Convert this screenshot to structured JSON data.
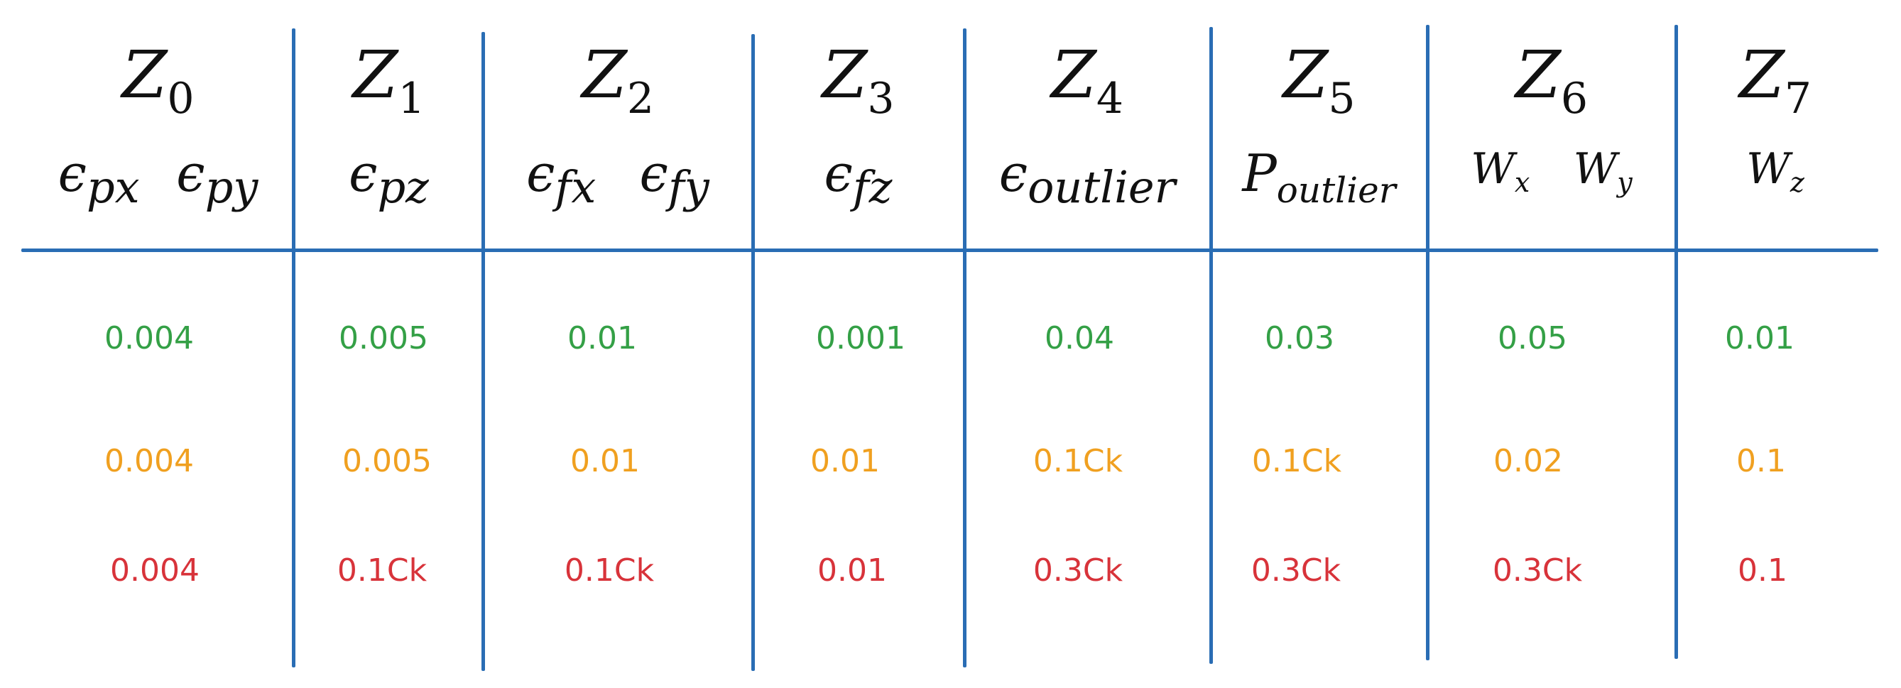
{
  "colors": {
    "lines": "#2a6db4",
    "text": "#111111",
    "row_green": "#34a046",
    "row_orange": "#f0a020",
    "row_red": "#d8333a"
  },
  "columns": [
    {
      "z": "Z",
      "z_sub": "0",
      "params": [
        {
          "base": "ϵ",
          "sub": "px"
        },
        {
          "base": "ϵ",
          "sub": "py"
        }
      ],
      "values": [
        "0.004",
        "0.004",
        "0.004"
      ]
    },
    {
      "z": "Z",
      "z_sub": "1",
      "params": [
        {
          "base": "ϵ",
          "sub": "pz"
        }
      ],
      "values": [
        "0.005",
        "0.005",
        "0.1Ck"
      ]
    },
    {
      "z": "Z",
      "z_sub": "2",
      "params": [
        {
          "base": "ϵ",
          "sub": "fx"
        },
        {
          "base": "ϵ",
          "sub": "fy"
        }
      ],
      "values": [
        "0.01",
        "0.01",
        "0.1Ck"
      ]
    },
    {
      "z": "Z",
      "z_sub": "3",
      "params": [
        {
          "base": "ϵ",
          "sub": "fz"
        }
      ],
      "values": [
        "0.001",
        "0.01",
        "0.01"
      ]
    },
    {
      "z": "Z",
      "z_sub": "4",
      "params": [
        {
          "base": "ϵ",
          "sub": "outlier"
        }
      ],
      "values": [
        "0.04",
        "0.1Ck",
        "0.3Ck"
      ]
    },
    {
      "z": "Z",
      "z_sub": "5",
      "params": [
        {
          "base": "P",
          "sub": "outlier"
        }
      ],
      "values": [
        "0.03",
        "0.1Ck",
        "0.3Ck"
      ]
    },
    {
      "z": "Z",
      "z_sub": "6",
      "params": [
        {
          "base": "W",
          "sub": "x"
        },
        {
          "base": "W",
          "sub": "y"
        }
      ],
      "values": [
        "0.05",
        "0.02",
        "0.3Ck"
      ]
    },
    {
      "z": "Z",
      "z_sub": "7",
      "params": [
        {
          "base": "W",
          "sub": "z"
        }
      ],
      "values": [
        "0.01",
        "0.1",
        "0.1"
      ]
    }
  ]
}
